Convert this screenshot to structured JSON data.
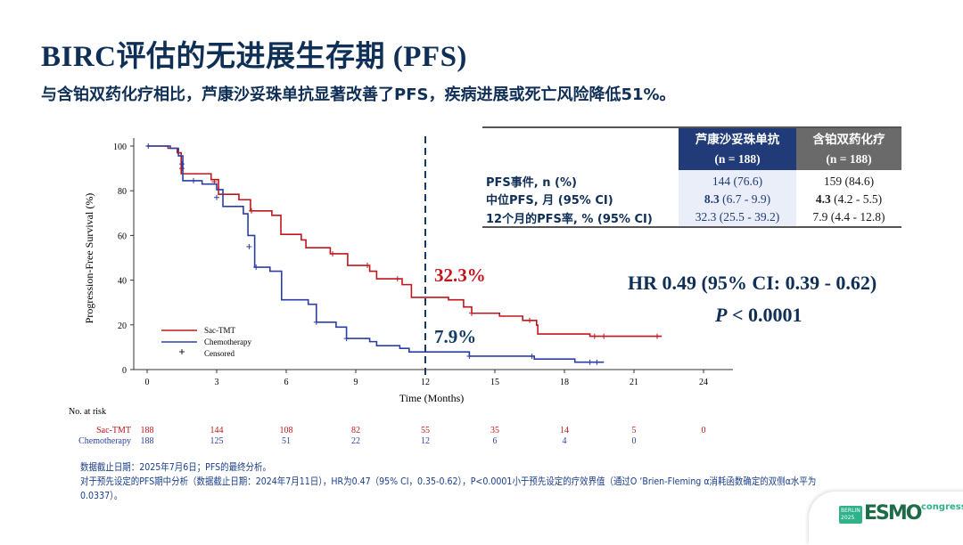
{
  "title": "BIRC评估的无进展生存期 (PFS)",
  "subtitle": "与含铂双药化疗相比，芦康沙妥珠单抗显著改善了PFS，疾病进展或死亡风险降低51%。",
  "chart_data": {
    "type": "line",
    "step": true,
    "xlabel": "Time (Months)",
    "ylabel": "Progression-Free Survival (%)",
    "xlim": [
      0,
      24
    ],
    "ylim": [
      0,
      100
    ],
    "xticks": [
      0,
      3,
      6,
      9,
      12,
      15,
      18,
      21,
      24
    ],
    "yticks": [
      0,
      20,
      40,
      60,
      80,
      100
    ],
    "legend_position": "bottom-left",
    "legend": [
      "Sac-TMT",
      "Chemotherapy",
      "Censored"
    ],
    "reference_line_x": 12,
    "annotations": [
      {
        "text": "32.3%",
        "series": "Sac-TMT",
        "x": 12
      },
      {
        "text": "7.9%",
        "series": "Chemotherapy",
        "x": 12
      }
    ],
    "series": [
      {
        "name": "Sac-TMT",
        "color": "#c0161c",
        "points": [
          [
            0,
            100
          ],
          [
            0.9,
            99
          ],
          [
            1.3,
            97
          ],
          [
            1.47,
            87.6
          ],
          [
            2.76,
            85
          ],
          [
            3.08,
            78.4
          ],
          [
            3.96,
            76
          ],
          [
            4.46,
            71
          ],
          [
            5.38,
            69
          ],
          [
            5.77,
            60.5
          ],
          [
            6.65,
            58
          ],
          [
            6.85,
            54.5
          ],
          [
            7.9,
            51.8
          ],
          [
            8.65,
            46.6
          ],
          [
            9.6,
            44
          ],
          [
            9.9,
            40.6
          ],
          [
            11.0,
            38
          ],
          [
            11.4,
            32.3
          ],
          [
            13.0,
            31.2
          ],
          [
            13.65,
            28
          ],
          [
            14.0,
            25.2
          ],
          [
            15.2,
            23.9
          ],
          [
            16.2,
            22
          ],
          [
            16.8,
            19.9
          ],
          [
            16.85,
            15.9
          ],
          [
            19.1,
            14.9
          ],
          [
            22.2,
            14.9
          ]
        ],
        "censored": [
          [
            1.5,
            90
          ],
          [
            2.9,
            84
          ],
          [
            4.5,
            71
          ],
          [
            8,
            51.8
          ],
          [
            9.5,
            46.6
          ],
          [
            10.8,
            40.6
          ],
          [
            14,
            25.2
          ],
          [
            16.5,
            22
          ],
          [
            19.3,
            14.9
          ],
          [
            19.7,
            14.9
          ],
          [
            22,
            14.9
          ]
        ]
      },
      {
        "name": "Chemotherapy",
        "color": "#2b3ea6",
        "points": [
          [
            0,
            100
          ],
          [
            1.0,
            99
          ],
          [
            1.35,
            95.6
          ],
          [
            1.54,
            84.5
          ],
          [
            2.37,
            83
          ],
          [
            3.0,
            80.5
          ],
          [
            3.27,
            73
          ],
          [
            4.15,
            69.7
          ],
          [
            4.35,
            60
          ],
          [
            4.64,
            45.8
          ],
          [
            5.3,
            44
          ],
          [
            5.8,
            31.2
          ],
          [
            6.95,
            29.2
          ],
          [
            7.3,
            21.2
          ],
          [
            8.15,
            19
          ],
          [
            8.6,
            13.9
          ],
          [
            9.6,
            12.5
          ],
          [
            9.9,
            10.7
          ],
          [
            10.9,
            9.5
          ],
          [
            11.3,
            7.9
          ],
          [
            13.65,
            7.9
          ],
          [
            13.9,
            6
          ],
          [
            16.65,
            6
          ],
          [
            16.7,
            4.7
          ],
          [
            18.4,
            4.7
          ],
          [
            18.45,
            3.3
          ],
          [
            19.7,
            3.3
          ]
        ],
        "censored": [
          [
            0.05,
            100
          ],
          [
            1.5,
            92
          ],
          [
            2.0,
            84.5
          ],
          [
            3.0,
            77
          ],
          [
            4.4,
            55
          ],
          [
            4.7,
            45.8
          ],
          [
            7.3,
            21.2
          ],
          [
            8.6,
            13.9
          ],
          [
            13.9,
            6
          ],
          [
            16.6,
            6
          ],
          [
            19.1,
            3.3
          ],
          [
            19.4,
            3.3
          ]
        ]
      }
    ],
    "risk_table": {
      "label": "No. at risk",
      "times": [
        0,
        3,
        6,
        9,
        12,
        15,
        18,
        21,
        24
      ],
      "rows": [
        {
          "name": "Sac-TMT",
          "values": [
            188,
            144,
            108,
            82,
            55,
            35,
            14,
            5,
            0
          ]
        },
        {
          "name": "Chemotherapy",
          "values": [
            188,
            125,
            51,
            22,
            12,
            6,
            4,
            0
          ]
        }
      ]
    }
  },
  "table": {
    "headers": [
      {
        "name": "芦康沙妥珠单抗",
        "n": "(n = 188)"
      },
      {
        "name": "含铂双药化疗",
        "n": "(n = 188)"
      }
    ],
    "rows": [
      {
        "label": "PFS事件, n (%)",
        "a_bold": "",
        "a": "144 (76.6)",
        "b_bold": "",
        "b": "159 (84.6)"
      },
      {
        "label": "中位PFS, 月 (95% CI)",
        "a_bold": "8.3",
        "a": " (6.7 - 9.9)",
        "b_bold": "4.3",
        "b": " (4.2 - 5.5)"
      },
      {
        "label": "12个月的PFS率, % (95% CI)",
        "a_bold": "",
        "a": "32.3 (25.5 - 39.2)",
        "b_bold": "",
        "b": "7.9 (4.4 - 12.8)"
      }
    ]
  },
  "hr": "HR 0.49 (95% CI: 0.39 - 0.62)",
  "p_label": "P",
  "p_value": " < 0.0001",
  "footnotes": [
    "数据截止日期：2025年7月6日；PFS的最终分析。",
    "对于预先设定的PFS期中分析（数据截止日期：2024年7月11日），HR为0.47（95% CI，0.35-0.62），P<0.0001小于预先设定的疗效界值（通过O ‘Brien-Fleming α消耗函数确定的双侧α水平为0.0337）。"
  ],
  "logo": {
    "city": "BERLIN 2025",
    "brand": "ESMO",
    "suffix": "congress"
  }
}
